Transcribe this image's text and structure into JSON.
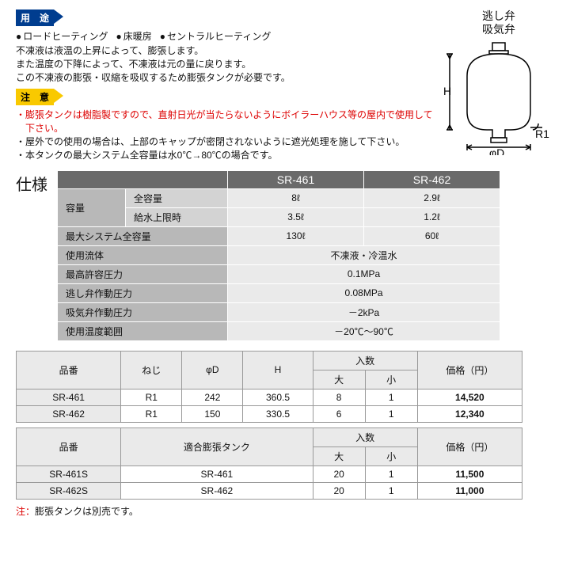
{
  "badges": {
    "uses": "用　途",
    "caution": "注　意"
  },
  "uses": [
    "ロードヒーティング",
    "床暖房",
    "セントラルヒーティング"
  ],
  "desc": [
    "不凍液は液温の上昇によって、膨張します。",
    "また温度の下降によって、不凍液は元の量に戻ります。",
    "この不凍液の膨張・収縮を吸収するため膨張タンクが必要です。"
  ],
  "notes": [
    {
      "text": "膨張タンクは樹脂製ですので、直射日光が当たらないようにボイラーハウス等の屋内で使用して下さい。",
      "red": true
    },
    {
      "text": "屋外での使用の場合は、上部のキャップが密閉されないように遮光処理を施して下さい。",
      "red": false
    },
    {
      "text": "本タンクの最大システム全容量は水0℃→80℃の場合です。",
      "red": false
    }
  ],
  "diagram": {
    "relief": "逃し弁",
    "intake": "吸気弁",
    "H": "H",
    "R1": "R1",
    "phiD": "φD"
  },
  "shiyou": "仕様",
  "spec": {
    "models": [
      "SR-461",
      "SR-462"
    ],
    "rows": [
      {
        "label": "容量",
        "sub": "全容量",
        "vals": [
          "8ℓ",
          "2.9ℓ"
        ],
        "rowspan": true
      },
      {
        "label": "",
        "sub": "給水上限時",
        "vals": [
          "3.5ℓ",
          "1.2ℓ"
        ]
      },
      {
        "label": "最大システム全容量",
        "vals": [
          "130ℓ",
          "60ℓ"
        ]
      },
      {
        "label": "使用流体",
        "span": "不凍液・冷温水"
      },
      {
        "label": "最高許容圧力",
        "span": "0.1MPa"
      },
      {
        "label": "逃し弁作動圧力",
        "span": "0.08MPa"
      },
      {
        "label": "吸気弁作動圧力",
        "span": "－2kPa"
      },
      {
        "label": "使用温度範囲",
        "span": "－20℃〜90℃"
      }
    ]
  },
  "table1": {
    "headers": {
      "code": "品番",
      "thread": "ねじ",
      "phiD": "φD",
      "H": "H",
      "qty": "入数",
      "big": "大",
      "small": "小",
      "price": "価格（円）"
    },
    "rows": [
      {
        "code": "SR-461",
        "thread": "R1",
        "phiD": "242",
        "H": "360.5",
        "big": "8",
        "small": "1",
        "price": "14,520"
      },
      {
        "code": "SR-462",
        "thread": "R1",
        "phiD": "150",
        "H": "330.5",
        "big": "6",
        "small": "1",
        "price": "12,340"
      }
    ]
  },
  "table2": {
    "headers": {
      "code": "品番",
      "compat": "適合膨張タンク",
      "qty": "入数",
      "big": "大",
      "small": "小",
      "price": "価格（円）"
    },
    "rows": [
      {
        "code": "SR-461S",
        "compat": "SR-461",
        "big": "20",
        "small": "1",
        "price": "11,500"
      },
      {
        "code": "SR-462S",
        "compat": "SR-462",
        "big": "20",
        "small": "1",
        "price": "11,000"
      }
    ]
  },
  "footnote": {
    "label": "注：",
    "text": "膨張タンクは別売です。"
  }
}
